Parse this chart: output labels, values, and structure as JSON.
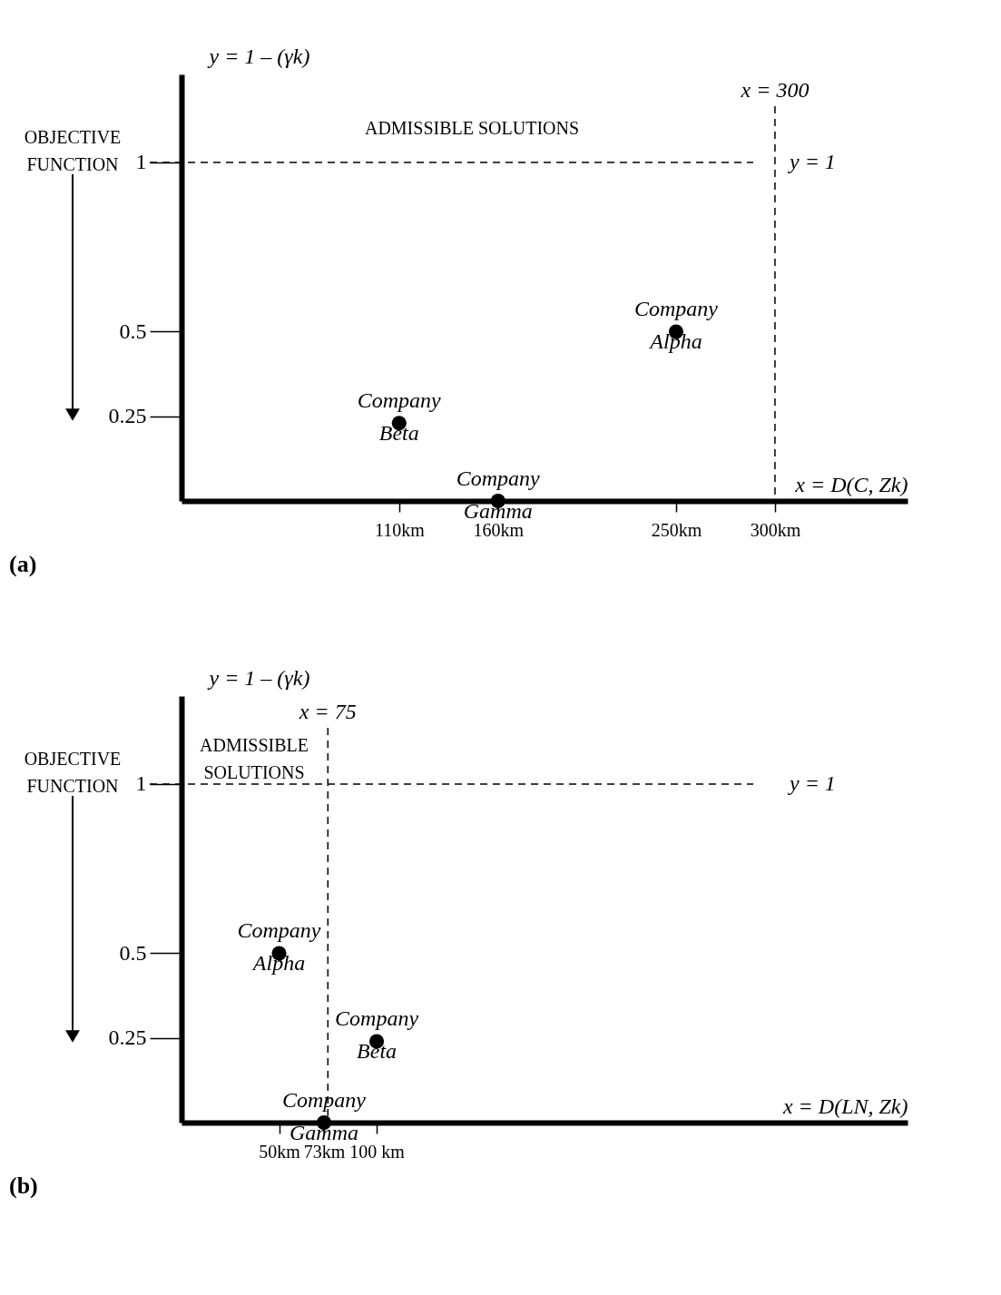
{
  "chart_data": [
    {
      "type": "scatter",
      "xlabel": "x = D(C, Zk)",
      "ylabel": "y = 1 – (γk)",
      "x": [
        250,
        110,
        160
      ],
      "values": [
        0.5,
        0.23,
        0
      ],
      "color": "#000000",
      "marker": "circle",
      "xlim": [
        0,
        367
      ],
      "ylim": [
        0,
        1.26
      ],
      "xticks": [
        {
          "value": 110,
          "label": "110km"
        },
        {
          "value": 160,
          "label": "160km"
        },
        {
          "value": 250,
          "label": "250km"
        },
        {
          "value": 300,
          "label": "300km"
        }
      ],
      "yticks": [
        0.25,
        0.5,
        1
      ],
      "ref_lines": [
        {
          "axis": "y",
          "value": 1,
          "label": "y = 1",
          "line_style": "dashed"
        },
        {
          "axis": "x",
          "value": 300,
          "label": "x = 300",
          "line_style": "dashed"
        }
      ],
      "annotations": [
        {
          "text": "Company\nAlpha",
          "x": 250,
          "y": 0.5
        },
        {
          "text": "Company\nBeta",
          "x": 110,
          "y": 0.23
        },
        {
          "text": "Company\nGamma",
          "x": 160,
          "y": 0
        },
        "OBJECTIVE\nFUNCTION",
        "ADMISSIBLE SOLUTIONS",
        "(a)"
      ],
      "grid": false
    },
    {
      "type": "scatter",
      "xlabel": "x = D(LN, Zk)",
      "ylabel": "y = 1 – (γk)",
      "x": [
        50,
        100,
        73
      ],
      "values": [
        0.5,
        0.24,
        0
      ],
      "color": "#000000",
      "marker": "circle",
      "xlim": [
        0,
        372
      ],
      "ylim": [
        0,
        1.26
      ],
      "xticks": [
        {
          "value": 50,
          "label": "50km"
        },
        {
          "value": 73,
          "label": "73km"
        },
        {
          "value": 100,
          "label": "100 km"
        }
      ],
      "yticks": [
        0.25,
        0.5,
        1
      ],
      "ref_lines": [
        {
          "axis": "y",
          "value": 1,
          "label": "y = 1",
          "line_style": "dashed"
        },
        {
          "axis": "x",
          "value": 75,
          "label": "x = 75",
          "line_style": "dashed"
        }
      ],
      "annotations": [
        {
          "text": "Company\nAlpha",
          "x": 50,
          "y": 0.5
        },
        {
          "text": "Company\nBeta",
          "x": 100,
          "y": 0.24
        },
        {
          "text": "Company\nGamma",
          "x": 73,
          "y": 0
        },
        "OBJECTIVE\nFUNCTION",
        "ADMISSIBLE\nSOLUTIONS",
        "(b)"
      ],
      "grid": false
    }
  ]
}
